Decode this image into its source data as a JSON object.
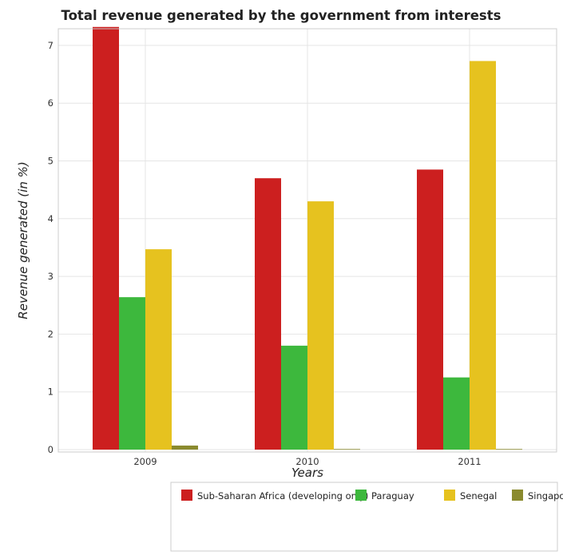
{
  "chart_data": {
    "type": "bar",
    "title": "Total revenue generated by the government from interests",
    "xlabel": "Years",
    "ylabel": "Revenue generated (in %)",
    "categories": [
      "2009",
      "2010",
      "2011"
    ],
    "ylim": [
      0,
      7.8
    ],
    "yticks": [
      "0",
      "1",
      "2",
      "3",
      "4",
      "5",
      "6",
      "7"
    ],
    "grid": true,
    "legend_position": "bottom-right",
    "series": [
      {
        "name": "Sub-Saharan Africa (developing only)",
        "color": "#cc1f1f",
        "values": [
          7.32,
          4.7,
          4.85
        ]
      },
      {
        "name": "Paraguay",
        "color": "#3db83d",
        "values": [
          2.64,
          1.8,
          1.25
        ]
      },
      {
        "name": "Senegal",
        "color": "#e6c21f",
        "values": [
          3.47,
          4.3,
          6.73
        ]
      },
      {
        "name": "Singapore",
        "color": "#8a8a2e",
        "values": [
          0.07,
          0.01,
          0.01
        ]
      }
    ]
  }
}
